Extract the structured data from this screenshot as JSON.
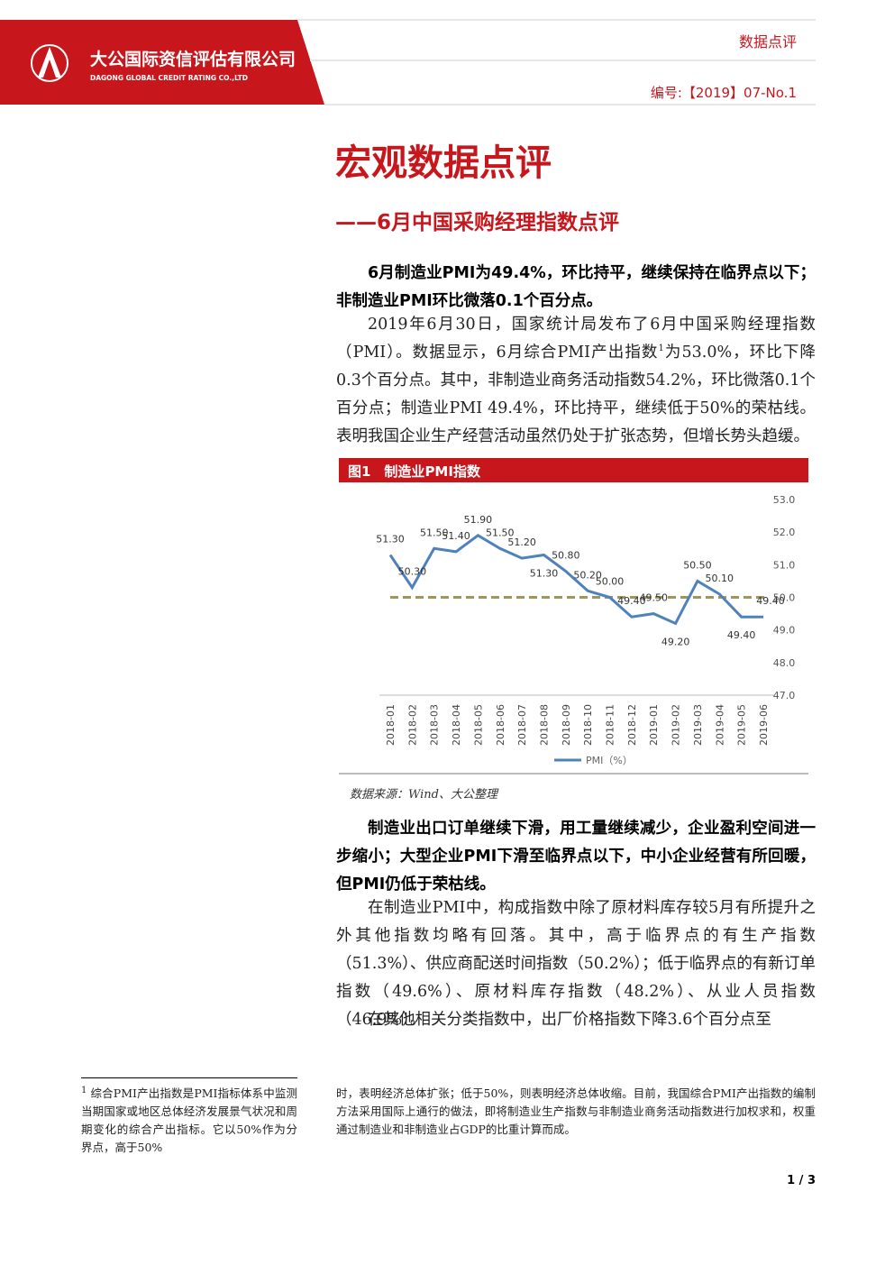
{
  "header": {
    "company": "大公国际资信评估有限公司",
    "company_en": "DAGONG GLOBAL CREDIT RATING CO.,LTD",
    "category": "数据点评",
    "number": "编号:【2019】07-No.1"
  },
  "title": "宏观数据点评",
  "subtitle": "——6月中国采购经理指数点评",
  "section1": {
    "heading": "6月制造业PMI为49.4%，环比持平，继续保持在临界点以下；非制造业PMI环比微落0.1个百分点。",
    "paragraph": [
      "2019年6月30日，国家统计局发布了6月中国采购经理指数（PMI）。数据显示，6月综合PMI产出指数",
      "1",
      "为53.0%，环比下降0.3个百分点。其中，非制造业商务活动指数54.2%，环比微落0.1个百分点；制造业PMI 49.4%，环比持平，继续低于50%的荣枯线。表明我国企业生产经营活动虽然仍处于扩张态势，但增长势头趋缓。"
    ]
  },
  "figure": {
    "caption": "图1　制造业PMI指数",
    "source": "数据来源：Wind、大公整理",
    "chart_data": {
      "type": "line",
      "categories": [
        "2018-01",
        "2018-02",
        "2018-03",
        "2018-04",
        "2018-05",
        "2018-06",
        "2018-07",
        "2018-08",
        "2018-09",
        "2018-10",
        "2018-11",
        "2018-12",
        "2019-01",
        "2019-02",
        "2019-03",
        "2019-04",
        "2019-05",
        "2019-06"
      ],
      "series": [
        {
          "name": "PMI（%）",
          "color": "#4f81bd",
          "values": [
            51.3,
            50.3,
            51.5,
            51.4,
            51.9,
            51.5,
            51.2,
            51.3,
            50.8,
            50.2,
            50.0,
            49.4,
            49.5,
            49.2,
            50.5,
            50.1,
            49.4,
            49.4
          ],
          "value_labels": [
            "51.30",
            "50.30",
            "51.50",
            "51.40",
            "51.90",
            "51.50",
            "51.20",
            "51.30",
            "50.80",
            "50.20",
            "50.00",
            "49.40",
            "49.50",
            "49.20",
            "50.50",
            "50.10",
            "49.40",
            "49.40"
          ]
        }
      ],
      "reference_line": 50,
      "reference_color": "#a19659",
      "ylim": [
        47,
        53
      ],
      "yticks": [
        {
          "value": 47,
          "label": "47.0"
        },
        {
          "value": 48,
          "label": "48.0"
        },
        {
          "value": 49,
          "label": "49.0"
        },
        {
          "value": 50,
          "label": "50.0"
        },
        {
          "value": 51,
          "label": "51.0"
        },
        {
          "value": 52,
          "label": "52.0"
        },
        {
          "value": 53,
          "label": "53.0"
        }
      ],
      "legend": "bottom"
    }
  },
  "section2": {
    "heading": "制造业出口订单继续下滑，用工量继续减少，企业盈利空间进一步缩小；大型企业PMI下滑至临界点以下，中小企业经营有所回暖，但PMI仍低于荣枯线。",
    "paragraphs": [
      "在制造业PMI中，构成指数中除了原材料库存较5月有所提升之外其他指数均略有回落。其中，高于临界点的有生产指数（51.3%）、供应商配送时间指数（50.2%）；低于临界点的有新订单指数（49.6%）、原材料库存指数（48.2%）、从业人员指数（46.9%）。",
      "在其他相关分类指数中，出厂价格指数下降3.6个百分点至"
    ]
  },
  "footnote": {
    "mark": "1",
    "left": "综合PMI产出指数是PMI指标体系中监测当期国家或地区总体经济发展景气状况和周期变化的综合产出指标。它以50%作为分界点，高于50%",
    "right": "时，表明经济总体扩张；低于50%，则表明经济总体收缩。目前，我国综合PMI产出指数的编制方法采用国际上通行的做法，即将制造业生产指数与非制造业商务活动指数进行加权求和，权重通过制造业和非制造业占GDP的比重计算而成。"
  },
  "page_number": "1 / 3"
}
